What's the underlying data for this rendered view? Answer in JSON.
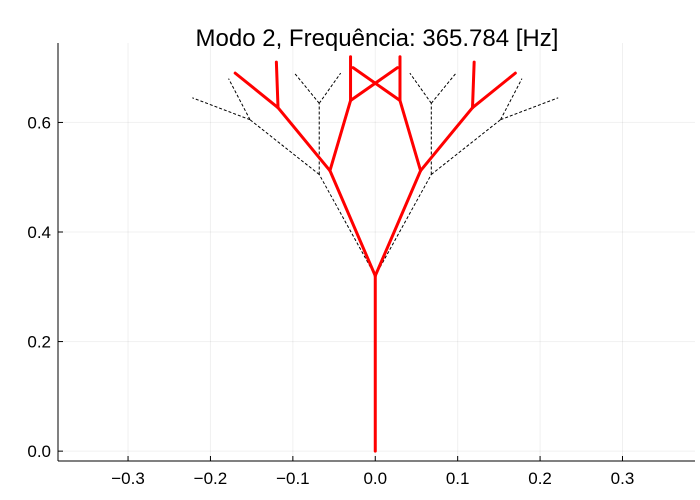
{
  "chart_data": {
    "type": "line",
    "title": "Modo 2, Frequência: 365.784 [Hz]",
    "xlabel": "",
    "ylabel": "",
    "xlim": [
      -0.385,
      0.388
    ],
    "ylim": [
      -0.018,
      0.745
    ],
    "xticks": [
      -0.3,
      -0.2,
      -0.1,
      0.0,
      0.1,
      0.2,
      0.3
    ],
    "xtick_labels": [
      "−0.3",
      "−0.2",
      "−0.1",
      "0.0",
      "0.1",
      "0.2",
      "0.3"
    ],
    "yticks": [
      0.0,
      0.2,
      0.4,
      0.6
    ],
    "ytick_labels": [
      "0.0",
      "0.2",
      "0.4",
      "0.6"
    ],
    "grid": true,
    "legend": "none",
    "colors": {
      "deformed": "#ff0000",
      "undeformed": "#000000"
    },
    "series": [
      {
        "style": "dashed",
        "segments": [
          [
            [
              0.0,
              0.0
            ],
            [
              0.0,
              0.32
            ]
          ],
          [
            [
              0.0,
              0.32
            ],
            [
              -0.068,
              0.505
            ]
          ],
          [
            [
              0.0,
              0.32
            ],
            [
              0.068,
              0.505
            ]
          ],
          [
            [
              -0.068,
              0.505
            ],
            [
              -0.152,
              0.605
            ]
          ],
          [
            [
              -0.068,
              0.505
            ],
            [
              -0.068,
              0.635
            ]
          ],
          [
            [
              0.068,
              0.505
            ],
            [
              0.152,
              0.605
            ]
          ],
          [
            [
              0.068,
              0.505
            ],
            [
              0.068,
              0.635
            ]
          ],
          [
            [
              -0.152,
              0.605
            ],
            [
              -0.222,
              0.645
            ]
          ],
          [
            [
              -0.152,
              0.605
            ],
            [
              -0.178,
              0.68
            ]
          ],
          [
            [
              -0.068,
              0.635
            ],
            [
              -0.098,
              0.69
            ]
          ],
          [
            [
              -0.068,
              0.635
            ],
            [
              -0.042,
              0.69
            ]
          ],
          [
            [
              0.068,
              0.635
            ],
            [
              0.042,
              0.69
            ]
          ],
          [
            [
              0.068,
              0.635
            ],
            [
              0.098,
              0.69
            ]
          ],
          [
            [
              0.152,
              0.605
            ],
            [
              0.178,
              0.68
            ]
          ],
          [
            [
              0.152,
              0.605
            ],
            [
              0.222,
              0.645
            ]
          ]
        ]
      },
      {
        "style": "solid",
        "segments": [
          [
            [
              0.0,
              0.0
            ],
            [
              0.0,
              0.32
            ]
          ],
          [
            [
              0.0,
              0.32
            ],
            [
              -0.055,
              0.512
            ]
          ],
          [
            [
              0.0,
              0.32
            ],
            [
              0.055,
              0.512
            ]
          ],
          [
            [
              -0.055,
              0.512
            ],
            [
              -0.118,
              0.627
            ]
          ],
          [
            [
              -0.055,
              0.512
            ],
            [
              -0.03,
              0.64
            ]
          ],
          [
            [
              0.055,
              0.512
            ],
            [
              0.118,
              0.627
            ]
          ],
          [
            [
              0.055,
              0.512
            ],
            [
              0.03,
              0.64
            ]
          ],
          [
            [
              -0.118,
              0.627
            ],
            [
              -0.17,
              0.69
            ]
          ],
          [
            [
              -0.118,
              0.627
            ],
            [
              -0.12,
              0.71
            ]
          ],
          [
            [
              -0.03,
              0.64
            ],
            [
              -0.03,
              0.72
            ]
          ],
          [
            [
              -0.03,
              0.64
            ],
            [
              0.027,
              0.7
            ]
          ],
          [
            [
              0.03,
              0.64
            ],
            [
              0.03,
              0.72
            ]
          ],
          [
            [
              0.03,
              0.64
            ],
            [
              -0.027,
              0.7
            ]
          ],
          [
            [
              0.118,
              0.627
            ],
            [
              0.12,
              0.71
            ]
          ],
          [
            [
              0.118,
              0.627
            ],
            [
              0.17,
              0.69
            ]
          ]
        ]
      }
    ]
  }
}
